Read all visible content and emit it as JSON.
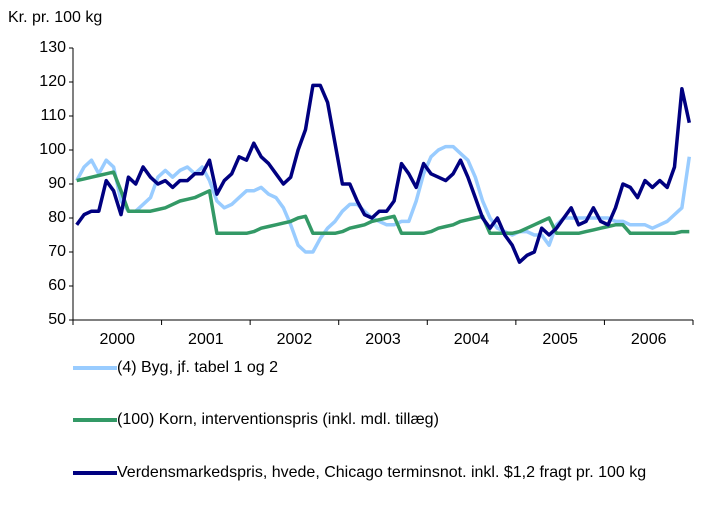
{
  "chart_data": {
    "type": "line",
    "y_label": "Kr. pr. 100 kg",
    "categories": [
      null,
      null,
      null,
      null,
      null,
      null,
      "2000",
      null,
      null,
      null,
      null,
      null,
      null,
      null,
      null,
      null,
      null,
      null,
      "2001",
      null,
      null,
      null,
      null,
      null,
      null,
      null,
      null,
      null,
      null,
      null,
      "2002",
      null,
      null,
      null,
      null,
      null,
      null,
      null,
      null,
      null,
      null,
      null,
      "2003",
      null,
      null,
      null,
      null,
      null,
      null,
      null,
      null,
      null,
      null,
      null,
      "2004",
      null,
      null,
      null,
      null,
      null,
      null,
      null,
      null,
      null,
      null,
      null,
      "2005",
      null,
      null,
      null,
      null,
      null,
      null,
      null,
      null,
      null,
      null,
      null,
      "2006",
      null,
      null,
      null,
      null,
      null
    ],
    "ylim": [
      50,
      130
    ],
    "yticks": [
      50,
      60,
      70,
      80,
      90,
      100,
      110,
      120,
      130
    ],
    "grid": false,
    "legend": "bottom",
    "series": [
      {
        "name": "(4) Byg, jf. tabel 1 og 2",
        "color": "#99ccff",
        "values": [
          91,
          95,
          97,
          93,
          97,
          95,
          85,
          82,
          82,
          84,
          86,
          92,
          94,
          92,
          94,
          95,
          93,
          95,
          91,
          85,
          83,
          84,
          86,
          88,
          88,
          89,
          87,
          86,
          83,
          78,
          72,
          70,
          70,
          74,
          77,
          79,
          82,
          84,
          84,
          82,
          80,
          79,
          78,
          78,
          79,
          79,
          85,
          93,
          98,
          100,
          101,
          101,
          99,
          97,
          92,
          85,
          80,
          77,
          76,
          75,
          76,
          76,
          75,
          75,
          72,
          78,
          80,
          80,
          80,
          80,
          80,
          80,
          80,
          79,
          79,
          78,
          78,
          78,
          77,
          78,
          79,
          81,
          83,
          98
        ]
      },
      {
        "name": "(100) Korn, interventionspris (inkl. mdl. tillæg)",
        "color": "#339966",
        "values": [
          91,
          91.5,
          92,
          92.5,
          93,
          93.5,
          88,
          82,
          82,
          82,
          82,
          82.5,
          83,
          84,
          85,
          85.5,
          86,
          87,
          88,
          75.5,
          75.5,
          75.5,
          75.5,
          75.5,
          76,
          77,
          77.5,
          78,
          78.5,
          79,
          80,
          80.5,
          75.5,
          75.5,
          75.5,
          75.5,
          76,
          77,
          77.5,
          78,
          79,
          79.5,
          80,
          80.5,
          75.5,
          75.5,
          75.5,
          75.5,
          76,
          77,
          77.5,
          78,
          79,
          79.5,
          80,
          80.5,
          75.5,
          75.5,
          75.5,
          75.5,
          76,
          77,
          78,
          79,
          80,
          75.5,
          75.5,
          75.5,
          75.5,
          76,
          76.5,
          77,
          77.5,
          78,
          78,
          75.5,
          75.5,
          75.5,
          75.5,
          75.5,
          75.5,
          75.5,
          76,
          76
        ]
      },
      {
        "name": "Verdensmarkedspris, hvede,  Chicago terminsnot. inkl. $1,2 fragt pr. 100 kg",
        "color": "#000080",
        "values": [
          78,
          81,
          82,
          82,
          91,
          88,
          81,
          92,
          90,
          95,
          92,
          90,
          91,
          89,
          91,
          91,
          93,
          93,
          97,
          87,
          91,
          93,
          98,
          97,
          102,
          98,
          96,
          93,
          90,
          92,
          100,
          106,
          119,
          119,
          114,
          102,
          90,
          90,
          85,
          81,
          80,
          82,
          82,
          85,
          96,
          93,
          89,
          96,
          93,
          92,
          91,
          93,
          97,
          92,
          86,
          80,
          77,
          80,
          75,
          72,
          67,
          69,
          70,
          77,
          75,
          77,
          80,
          83,
          78,
          79,
          83,
          79,
          78,
          83,
          90,
          89,
          86,
          91,
          89,
          91,
          89,
          95,
          118,
          108
        ]
      }
    ]
  }
}
